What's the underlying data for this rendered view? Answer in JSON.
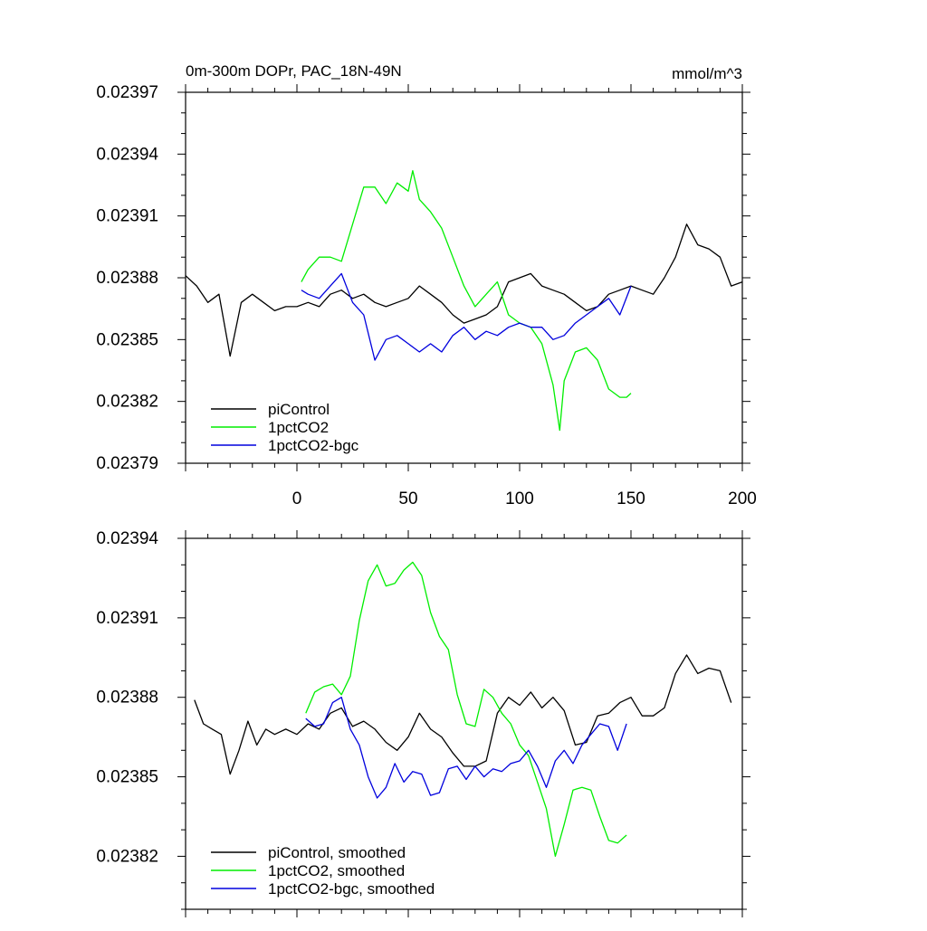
{
  "colors": {
    "piControl": "#000000",
    "1pctCO2": "#00ee00",
    "1pctCO2-bgc": "#0000dd"
  },
  "chart_data": [
    {
      "type": "line",
      "title": "0m-300m DOPr, PAC_18N-49N",
      "units": "mmol/m^3",
      "xlim": [
        -50,
        200
      ],
      "ylim": [
        0.02379,
        0.02397
      ],
      "xticks": [
        0,
        50,
        100,
        150,
        200
      ],
      "yticks": [
        0.02379,
        0.02382,
        0.02385,
        0.02388,
        0.02391,
        0.02394,
        0.02397
      ],
      "ytick_labels": [
        "0.02379",
        "0.02382",
        "0.02385",
        "0.02388",
        "0.02391",
        "0.02394",
        "0.02397"
      ],
      "legend": [
        "piControl",
        "1pctCO2",
        "1pctCO2-bgc"
      ],
      "legend_position": "bottom-left",
      "series": [
        {
          "name": "piControl",
          "color": "#000000",
          "x": [
            -50,
            -45,
            -40,
            -35,
            -30,
            -25,
            -20,
            -15,
            -10,
            -5,
            0,
            5,
            10,
            15,
            20,
            25,
            30,
            35,
            40,
            45,
            50,
            55,
            60,
            65,
            70,
            75,
            80,
            85,
            90,
            95,
            100,
            105,
            110,
            115,
            120,
            125,
            130,
            135,
            140,
            145,
            150,
            155,
            160,
            165,
            170,
            175,
            180,
            185,
            190,
            195,
            200
          ],
          "y": [
            0.023881,
            0.023876,
            0.023868,
            0.023872,
            0.023842,
            0.023868,
            0.023872,
            0.023868,
            0.023864,
            0.023866,
            0.023866,
            0.023868,
            0.023866,
            0.023872,
            0.023874,
            0.02387,
            0.023872,
            0.023868,
            0.023866,
            0.023868,
            0.02387,
            0.023876,
            0.023872,
            0.023868,
            0.023862,
            0.023858,
            0.02386,
            0.023862,
            0.023866,
            0.023878,
            0.02388,
            0.023882,
            0.023876,
            0.023874,
            0.023872,
            0.023868,
            0.023864,
            0.023866,
            0.023872,
            0.023874,
            0.023876,
            0.023874,
            0.023872,
            0.02388,
            0.02389,
            0.023906,
            0.023896,
            0.023894,
            0.02389,
            0.023876,
            0.023878
          ]
        },
        {
          "name": "1pctCO2",
          "color": "#00ee00",
          "x": [
            2,
            5,
            10,
            15,
            20,
            25,
            30,
            35,
            40,
            45,
            50,
            52,
            55,
            60,
            65,
            70,
            75,
            80,
            85,
            90,
            95,
            100,
            105,
            110,
            115,
            118,
            120,
            125,
            130,
            135,
            140,
            145,
            148,
            150
          ],
          "y": [
            0.023878,
            0.023884,
            0.02389,
            0.02389,
            0.023888,
            0.023906,
            0.023924,
            0.023924,
            0.023916,
            0.023926,
            0.023922,
            0.023932,
            0.023918,
            0.023912,
            0.023904,
            0.02389,
            0.023876,
            0.023866,
            0.023872,
            0.023878,
            0.023862,
            0.023858,
            0.023856,
            0.023848,
            0.023828,
            0.023806,
            0.02383,
            0.023844,
            0.023846,
            0.02384,
            0.023826,
            0.023822,
            0.023822,
            0.023824
          ]
        },
        {
          "name": "1pctCO2-bgc",
          "color": "#0000dd",
          "x": [
            2,
            5,
            10,
            15,
            20,
            25,
            30,
            35,
            40,
            45,
            50,
            55,
            60,
            65,
            70,
            75,
            80,
            85,
            90,
            95,
            100,
            105,
            110,
            115,
            120,
            125,
            130,
            135,
            140,
            145,
            150
          ],
          "y": [
            0.023874,
            0.023872,
            0.02387,
            0.023876,
            0.023882,
            0.023868,
            0.023862,
            0.02384,
            0.02385,
            0.023852,
            0.023848,
            0.023844,
            0.023848,
            0.023844,
            0.023852,
            0.023856,
            0.02385,
            0.023854,
            0.023852,
            0.023856,
            0.023858,
            0.023856,
            0.023856,
            0.02385,
            0.023852,
            0.023858,
            0.023862,
            0.023866,
            0.02387,
            0.023862,
            0.023876
          ]
        }
      ]
    },
    {
      "type": "line",
      "title": "",
      "xlim": [
        -50,
        200
      ],
      "ylim": [
        0.0238,
        0.02394
      ],
      "xticks": [
        0,
        50,
        100,
        150,
        200
      ],
      "yticks": [
        0.02382,
        0.02385,
        0.02388,
        0.02391,
        0.02394
      ],
      "ytick_labels": [
        "0.02382",
        "0.02385",
        "0.02388",
        "0.02391",
        "0.02394"
      ],
      "legend": [
        "piControl, smoothed",
        "1pctCO2, smoothed",
        "1pctCO2-bgc, smoothed"
      ],
      "legend_position": "bottom-left",
      "series": [
        {
          "name": "piControl, smoothed",
          "color": "#000000",
          "x": [
            -46,
            -42,
            -38,
            -34,
            -30,
            -26,
            -22,
            -18,
            -14,
            -10,
            -5,
            0,
            5,
            10,
            15,
            20,
            25,
            30,
            35,
            40,
            45,
            50,
            55,
            60,
            65,
            70,
            75,
            80,
            85,
            90,
            95,
            100,
            105,
            110,
            115,
            120,
            125,
            130,
            135,
            140,
            145,
            150,
            155,
            160,
            165,
            170,
            175,
            180,
            185,
            190,
            195
          ],
          "y": [
            0.023879,
            0.02387,
            0.023868,
            0.023866,
            0.023851,
            0.02386,
            0.023871,
            0.023862,
            0.023868,
            0.023866,
            0.023868,
            0.023866,
            0.02387,
            0.023868,
            0.023874,
            0.023876,
            0.023869,
            0.023871,
            0.023868,
            0.023863,
            0.02386,
            0.023865,
            0.023874,
            0.023868,
            0.023865,
            0.023859,
            0.023854,
            0.023854,
            0.023856,
            0.023874,
            0.02388,
            0.023877,
            0.023882,
            0.023876,
            0.02388,
            0.023875,
            0.023862,
            0.023863,
            0.023873,
            0.023874,
            0.023878,
            0.02388,
            0.023873,
            0.023873,
            0.023876,
            0.023889,
            0.023896,
            0.023889,
            0.023891,
            0.02389,
            0.023878
          ]
        },
        {
          "name": "1pctCO2, smoothed",
          "color": "#00ee00",
          "x": [
            4,
            8,
            12,
            16,
            20,
            24,
            28,
            32,
            36,
            40,
            44,
            48,
            52,
            56,
            60,
            64,
            68,
            72,
            76,
            80,
            84,
            88,
            92,
            96,
            100,
            104,
            108,
            112,
            116,
            120,
            124,
            128,
            132,
            136,
            140,
            144,
            148
          ],
          "y": [
            0.023874,
            0.023882,
            0.023884,
            0.023885,
            0.023881,
            0.023888,
            0.023909,
            0.023924,
            0.02393,
            0.023922,
            0.023923,
            0.023928,
            0.023931,
            0.023926,
            0.023912,
            0.023903,
            0.023898,
            0.023881,
            0.02387,
            0.023869,
            0.023883,
            0.02388,
            0.023874,
            0.02387,
            0.023862,
            0.023858,
            0.023848,
            0.023838,
            0.02382,
            0.023832,
            0.023845,
            0.023846,
            0.023845,
            0.023835,
            0.023826,
            0.023825,
            0.023828
          ]
        },
        {
          "name": "1pctCO2-bgc, smoothed",
          "color": "#0000dd",
          "x": [
            4,
            8,
            12,
            16,
            20,
            24,
            28,
            32,
            36,
            40,
            44,
            48,
            52,
            56,
            60,
            64,
            68,
            72,
            76,
            80,
            84,
            88,
            92,
            96,
            100,
            104,
            108,
            112,
            116,
            120,
            124,
            128,
            132,
            136,
            140,
            144,
            148
          ],
          "y": [
            0.023872,
            0.023869,
            0.02387,
            0.023878,
            0.02388,
            0.023868,
            0.023862,
            0.02385,
            0.023842,
            0.023846,
            0.023855,
            0.023848,
            0.023852,
            0.023851,
            0.023843,
            0.023844,
            0.023853,
            0.023854,
            0.023849,
            0.023854,
            0.02385,
            0.023853,
            0.023852,
            0.023855,
            0.023856,
            0.02386,
            0.023854,
            0.023846,
            0.023856,
            0.02386,
            0.023855,
            0.023862,
            0.023866,
            0.02387,
            0.023869,
            0.02386,
            0.02387
          ]
        }
      ]
    }
  ]
}
